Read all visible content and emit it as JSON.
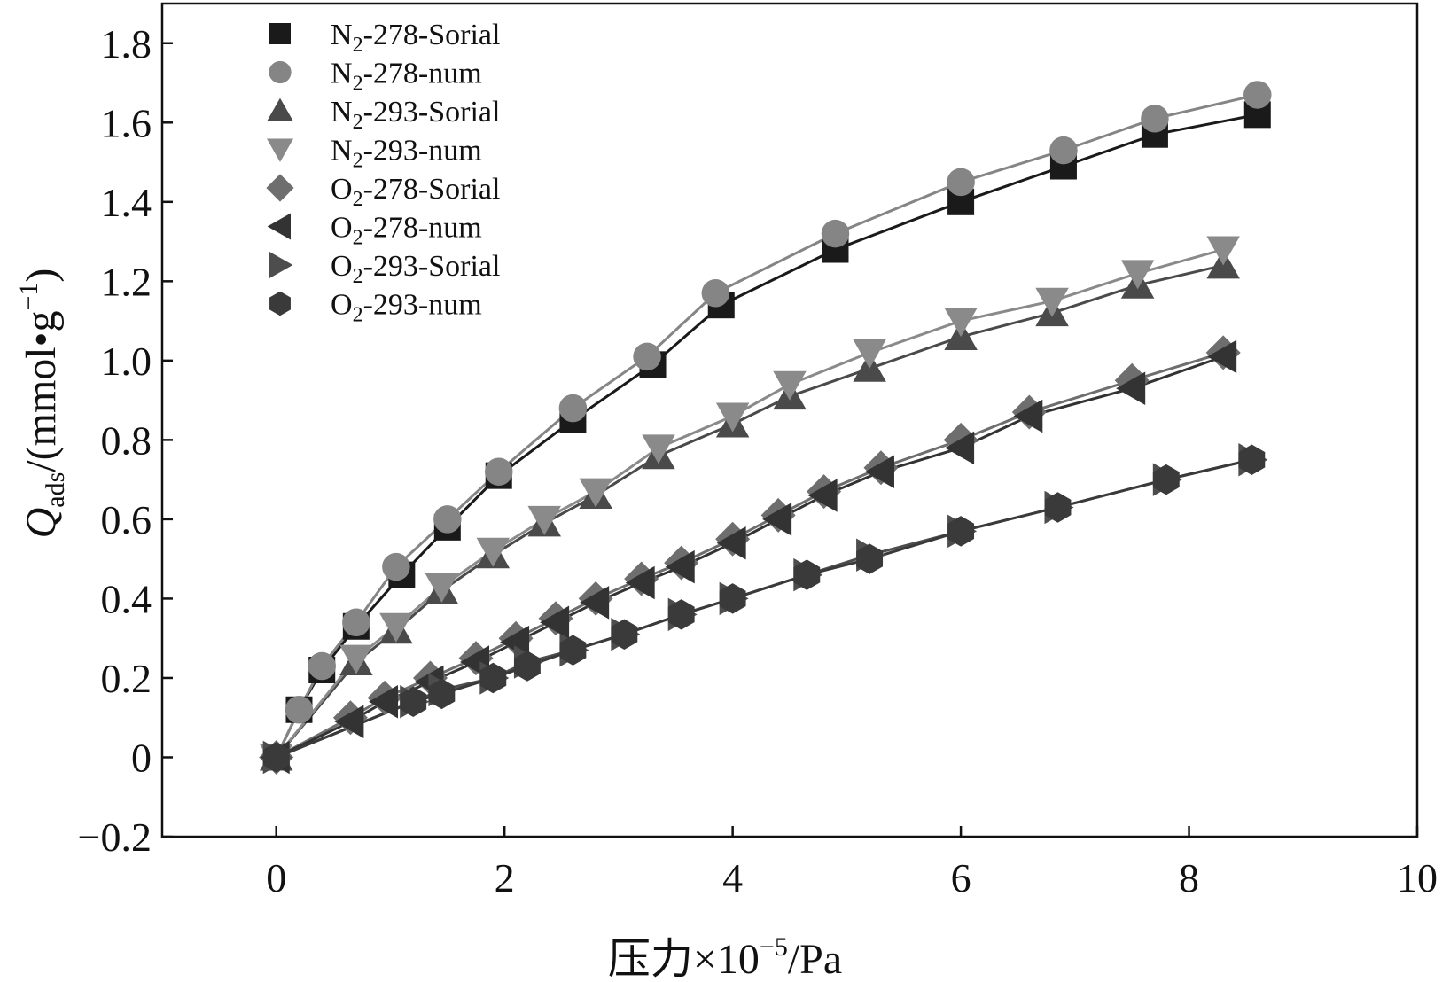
{
  "chart_data": {
    "type": "line",
    "title": "",
    "xlabel_main": "压力×10",
    "xlabel_exp": "−5",
    "xlabel_unit": "/Pa",
    "ylabel_q": "Q",
    "ylabel_sub": "ads",
    "ylabel_unit_pre": "/(mmol•g",
    "ylabel_unit_exp": "−1",
    "ylabel_unit_post": ")",
    "xlim": [
      -1,
      10
    ],
    "ylim": [
      -0.2,
      1.9
    ],
    "xticks": [
      0,
      2,
      4,
      6,
      8,
      10
    ],
    "xtick_labels": [
      "0",
      "2",
      "4",
      "6",
      "8",
      "10"
    ],
    "yticks": [
      -0.2,
      0,
      0.2,
      0.4,
      0.6,
      0.8,
      1.0,
      1.2,
      1.4,
      1.6,
      1.8
    ],
    "ytick_labels": [
      "−0.2",
      "0",
      "0.2",
      "0.4",
      "0.6",
      "0.8",
      "1.0",
      "1.2",
      "1.4",
      "1.6",
      "1.8"
    ],
    "grid": false,
    "legend_position": "top-left",
    "series": [
      {
        "name": "N2-278-Sorial",
        "gas": "N",
        "gas_sub": "2",
        "rest": "-278-Sorial",
        "marker": "square",
        "color": "#1a1a1a",
        "line": "#1a1a1a",
        "x": [
          0,
          0.2,
          0.4,
          0.7,
          1.1,
          1.5,
          1.95,
          2.6,
          3.3,
          3.9,
          4.9,
          6.0,
          6.9,
          7.7,
          8.6
        ],
        "y": [
          0,
          0.12,
          0.22,
          0.33,
          0.46,
          0.58,
          0.71,
          0.85,
          0.99,
          1.14,
          1.28,
          1.4,
          1.49,
          1.57,
          1.62
        ]
      },
      {
        "name": "N2-278-num",
        "gas": "N",
        "gas_sub": "2",
        "rest": "-278-num",
        "marker": "circle",
        "color": "#858585",
        "line": "#858585",
        "x": [
          0,
          0.2,
          0.4,
          0.7,
          1.05,
          1.5,
          1.95,
          2.6,
          3.25,
          3.85,
          4.9,
          6.0,
          6.9,
          7.7,
          8.6
        ],
        "y": [
          0,
          0.12,
          0.23,
          0.34,
          0.48,
          0.6,
          0.72,
          0.88,
          1.01,
          1.17,
          1.32,
          1.45,
          1.53,
          1.61,
          1.67
        ]
      },
      {
        "name": "N2-293-Sorial",
        "gas": "N",
        "gas_sub": "2",
        "rest": "-293-Sorial",
        "marker": "triangle-up",
        "color": "#4a4a4a",
        "line": "#4a4a4a",
        "x": [
          0,
          0.7,
          1.05,
          1.45,
          1.9,
          2.35,
          2.8,
          3.35,
          4.0,
          4.5,
          5.2,
          6.0,
          6.8,
          7.55,
          8.3
        ],
        "y": [
          0,
          0.24,
          0.32,
          0.42,
          0.51,
          0.59,
          0.66,
          0.76,
          0.84,
          0.91,
          0.98,
          1.06,
          1.12,
          1.19,
          1.24
        ]
      },
      {
        "name": "N2-293-num",
        "gas": "N",
        "gas_sub": "2",
        "rest": "-293-num",
        "marker": "triangle-down",
        "color": "#8a8a8a",
        "line": "#8a8a8a",
        "x": [
          0,
          0.7,
          1.05,
          1.45,
          1.9,
          2.35,
          2.8,
          3.35,
          4.0,
          4.5,
          5.2,
          6.0,
          6.8,
          7.55,
          8.3
        ],
        "y": [
          0,
          0.25,
          0.33,
          0.43,
          0.52,
          0.6,
          0.67,
          0.78,
          0.86,
          0.94,
          1.02,
          1.1,
          1.15,
          1.22,
          1.28
        ]
      },
      {
        "name": "O2-278-Sorial",
        "gas": "O",
        "gas_sub": "2",
        "rest": "-278-Sorial",
        "marker": "diamond",
        "color": "#6e6e6e",
        "line": "#6e6e6e",
        "x": [
          0,
          0.65,
          0.95,
          1.35,
          1.75,
          2.1,
          2.45,
          2.8,
          3.2,
          3.55,
          4.0,
          4.4,
          4.8,
          5.3,
          6.0,
          6.6,
          7.5,
          8.3
        ],
        "y": [
          0,
          0.1,
          0.15,
          0.2,
          0.25,
          0.3,
          0.35,
          0.4,
          0.45,
          0.49,
          0.55,
          0.61,
          0.67,
          0.73,
          0.8,
          0.87,
          0.95,
          1.02
        ]
      },
      {
        "name": "O2-278-num",
        "gas": "O",
        "gas_sub": "2",
        "rest": "-278-num",
        "marker": "triangle-left",
        "color": "#333333",
        "line": "#333333",
        "x": [
          0,
          0.65,
          0.95,
          1.35,
          1.75,
          2.1,
          2.45,
          2.8,
          3.2,
          3.55,
          4.0,
          4.4,
          4.8,
          5.3,
          6.0,
          6.6,
          7.5,
          8.3
        ],
        "y": [
          0,
          0.09,
          0.14,
          0.19,
          0.24,
          0.29,
          0.34,
          0.39,
          0.44,
          0.48,
          0.54,
          0.6,
          0.66,
          0.72,
          0.78,
          0.86,
          0.93,
          1.01
        ]
      },
      {
        "name": "O2-293-Sorial",
        "gas": "O",
        "gas_sub": "2",
        "rest": "-293-Sorial",
        "marker": "triangle-right",
        "color": "#4d4d4d",
        "line": "#4d4d4d",
        "x": [
          0,
          1.2,
          1.45,
          1.9,
          2.2,
          2.6,
          3.05,
          3.55,
          4.0,
          4.65,
          5.2,
          6.0,
          6.85,
          7.8,
          8.55
        ],
        "y": [
          0,
          0.14,
          0.17,
          0.2,
          0.24,
          0.27,
          0.31,
          0.36,
          0.4,
          0.46,
          0.51,
          0.57,
          0.63,
          0.7,
          0.75
        ]
      },
      {
        "name": "O2-293-num",
        "gas": "O",
        "gas_sub": "2",
        "rest": "-293-num",
        "marker": "hexagon",
        "color": "#3a3a3a",
        "line": "#3a3a3a",
        "x": [
          0,
          1.2,
          1.45,
          1.9,
          2.2,
          2.6,
          3.05,
          3.55,
          4.0,
          4.65,
          5.2,
          6.0,
          6.85,
          7.8,
          8.55
        ],
        "y": [
          0,
          0.14,
          0.16,
          0.2,
          0.23,
          0.27,
          0.31,
          0.36,
          0.4,
          0.46,
          0.5,
          0.57,
          0.63,
          0.7,
          0.75
        ]
      }
    ]
  }
}
